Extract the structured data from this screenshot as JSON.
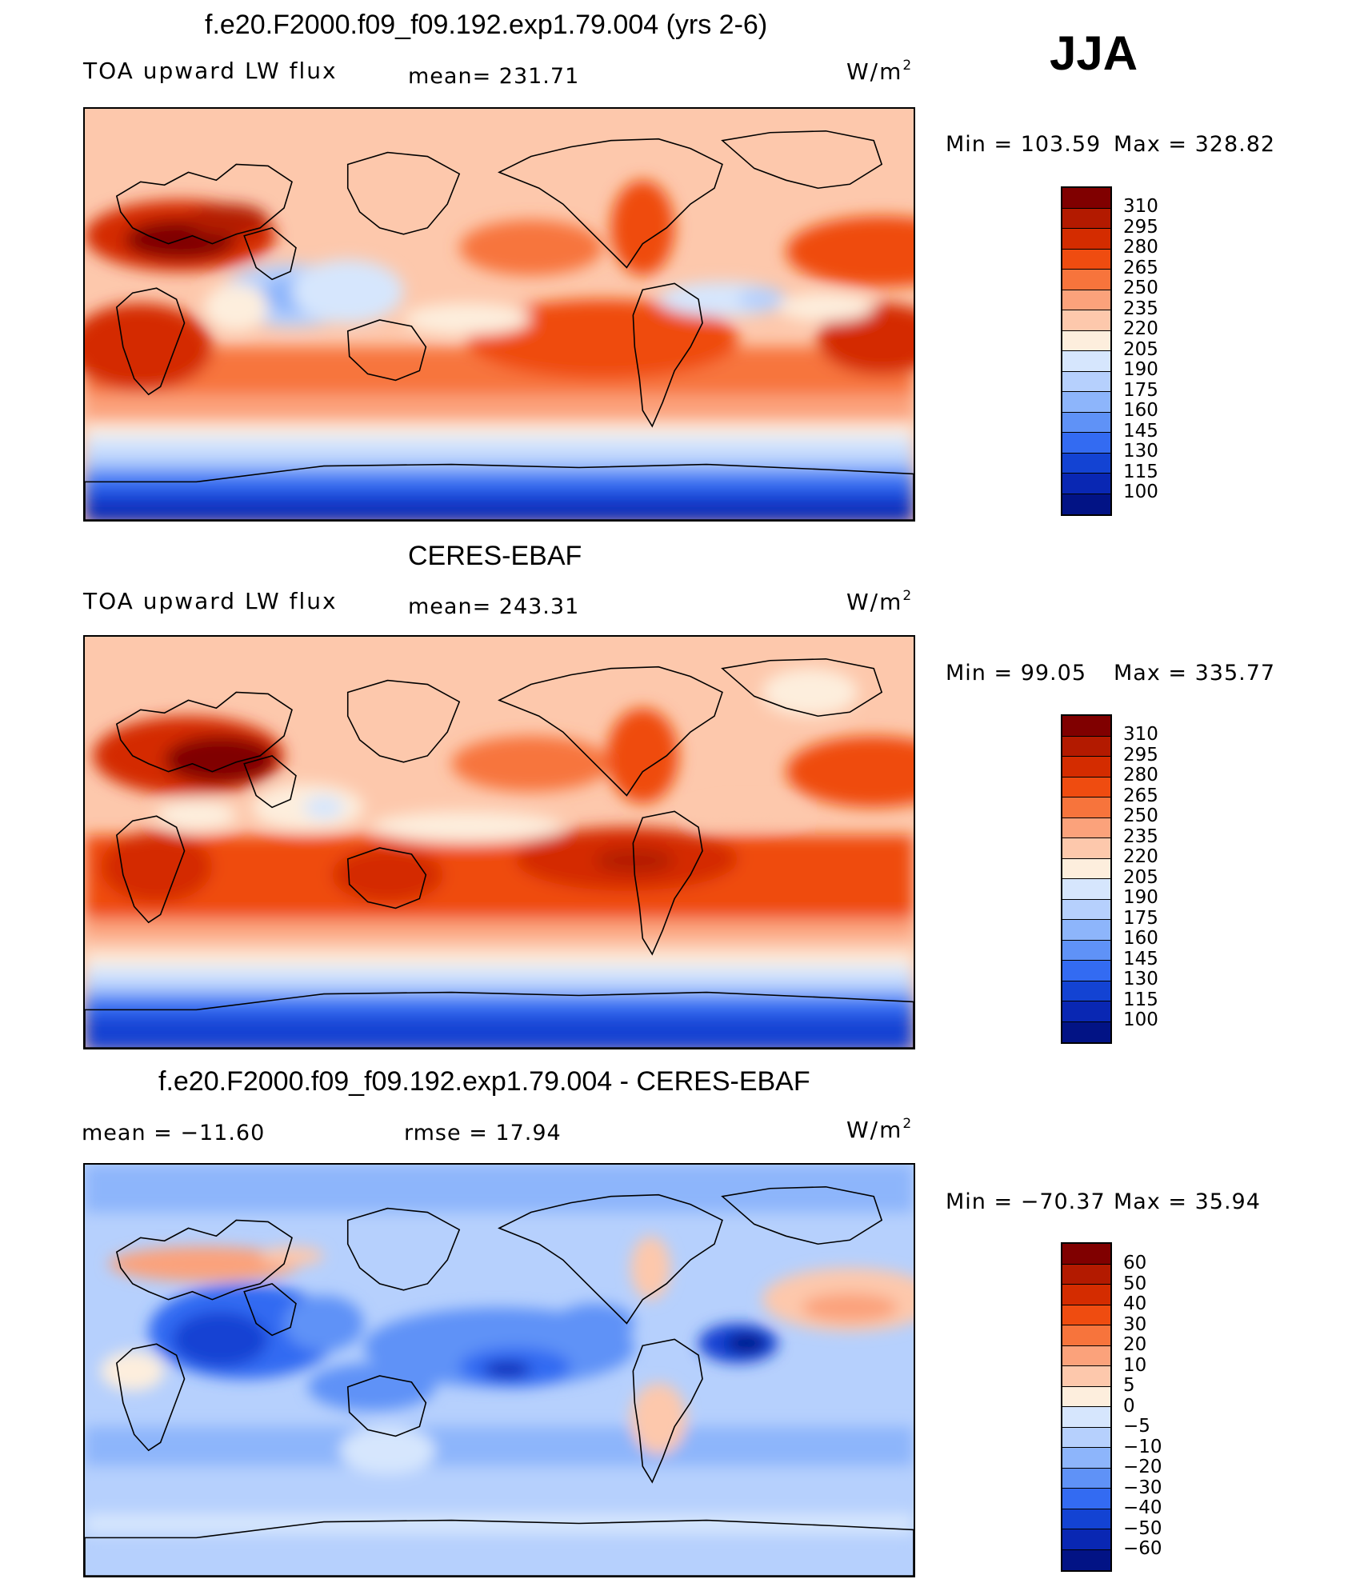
{
  "season": "JJA",
  "panels": [
    {
      "title": "f.e20.F2000.f09_f09.192.exp1.79.004 (yrs 2-6)",
      "left_label": "TOA  upward  LW  flux",
      "mid_label": "mean=  231.71",
      "units": "W/m",
      "units_sup": "2",
      "min_label": "Min  =  103.59",
      "max_label": "Max  =  328.82",
      "colorbar": {
        "labels": [
          "310",
          "295",
          "280",
          "265",
          "250",
          "235",
          "220",
          "205",
          "190",
          "175",
          "160",
          "145",
          "130",
          "115",
          "100"
        ],
        "colors": [
          "#800000",
          "#b31a00",
          "#d42c00",
          "#ef4c10",
          "#f7743c",
          "#fba27b",
          "#fdc8ac",
          "#fdeedd",
          "#d6e6fd",
          "#b6d0fd",
          "#8db5fb",
          "#5f92f7",
          "#336bf2",
          "#1343d3",
          "#0927b3",
          "#021385"
        ]
      }
    },
    {
      "title": "CERES-EBAF",
      "left_label": "TOA  upward  LW  flux",
      "mid_label": "mean=  243.31",
      "units": "W/m",
      "units_sup": "2",
      "min_label": "Min  =   99.05",
      "max_label": "Max  =  335.77",
      "colorbar": {
        "labels": [
          "310",
          "295",
          "280",
          "265",
          "250",
          "235",
          "220",
          "205",
          "190",
          "175",
          "160",
          "145",
          "130",
          "115",
          "100"
        ],
        "colors": [
          "#800000",
          "#b31a00",
          "#d42c00",
          "#ef4c10",
          "#f7743c",
          "#fba27b",
          "#fdc8ac",
          "#fdeedd",
          "#d6e6fd",
          "#b6d0fd",
          "#8db5fb",
          "#5f92f7",
          "#336bf2",
          "#1343d3",
          "#0927b3",
          "#021385"
        ]
      }
    },
    {
      "title": "f.e20.F2000.f09_f09.192.exp1.79.004 - CERES-EBAF",
      "left_label": "mean  =  −11.60",
      "mid_label": "rmse  =    17.94",
      "units": "W/m",
      "units_sup": "2",
      "min_label": "Min  =  −70.37",
      "max_label": "Max  =    35.94",
      "colorbar": {
        "labels": [
          "60",
          "50",
          "40",
          "30",
          "20",
          "10",
          "5",
          "0",
          "−5",
          "−10",
          "−20",
          "−30",
          "−40",
          "−50",
          "−60"
        ],
        "colors": [
          "#800000",
          "#b31a00",
          "#d42c00",
          "#ef4c10",
          "#f7743c",
          "#fba27b",
          "#fdc8ac",
          "#fdeedd",
          "#d6e6fd",
          "#b6d0fd",
          "#8db5fb",
          "#5f92f7",
          "#336bf2",
          "#1343d3",
          "#0927b3",
          "#021385"
        ]
      }
    }
  ]
}
